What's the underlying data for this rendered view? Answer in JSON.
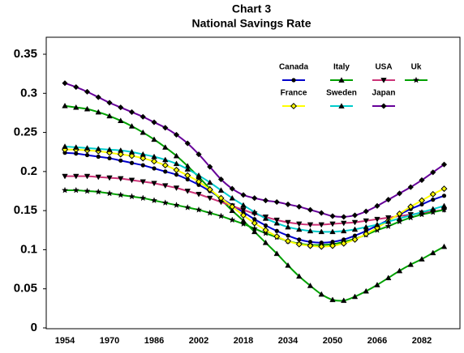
{
  "chart_data": {
    "type": "line",
    "title": "Chart 3",
    "subtitle": "National Savings Rate",
    "categories": [
      "1954",
      null,
      null,
      null,
      "1970",
      null,
      null,
      null,
      "1986",
      null,
      null,
      null,
      "2002",
      null,
      null,
      null,
      "2018",
      null,
      null,
      null,
      "2034",
      null,
      null,
      null,
      "2050",
      null,
      null,
      null,
      "2066",
      null,
      null,
      null,
      "2082",
      null,
      null
    ],
    "ylim": [
      0,
      0.35
    ],
    "yticks": [
      0,
      0.05,
      0.1,
      0.15,
      0.2,
      0.25,
      0.3,
      0.35
    ],
    "grid": false,
    "legend": "top-right",
    "series": [
      {
        "name": "Canada",
        "color": "#0000cc",
        "marker": "circle",
        "values": [
          0.224,
          0.223,
          0.221,
          0.219,
          0.217,
          0.214,
          0.211,
          0.208,
          0.204,
          0.2,
          0.196,
          0.19,
          0.183,
          0.175,
          0.166,
          0.157,
          0.148,
          0.139,
          0.131,
          0.124,
          0.118,
          0.113,
          0.11,
          0.109,
          0.11,
          0.113,
          0.118,
          0.124,
          0.131,
          0.138,
          0.145,
          0.152,
          0.158,
          0.164,
          0.169
        ]
      },
      {
        "name": "Italy",
        "color": "#00a000",
        "marker": "triangle",
        "values": [
          0.284,
          0.282,
          0.28,
          0.276,
          0.271,
          0.265,
          0.258,
          0.25,
          0.241,
          0.231,
          0.22,
          0.207,
          0.193,
          0.178,
          0.164,
          0.15,
          0.137,
          0.123,
          0.109,
          0.095,
          0.08,
          0.066,
          0.054,
          0.043,
          0.036,
          0.035,
          0.04,
          0.047,
          0.055,
          0.064,
          0.073,
          0.081,
          0.088,
          0.096,
          0.104
        ]
      },
      {
        "name": "USA",
        "color": "#cc3377",
        "marker": "triangle-down",
        "values": [
          0.194,
          0.194,
          0.194,
          0.193,
          0.192,
          0.191,
          0.189,
          0.187,
          0.185,
          0.182,
          0.179,
          0.175,
          0.171,
          0.166,
          0.161,
          0.156,
          0.151,
          0.146,
          0.142,
          0.138,
          0.135,
          0.133,
          0.132,
          0.132,
          0.133,
          0.134,
          0.135,
          0.137,
          0.139,
          0.141,
          0.143,
          0.145,
          0.147,
          0.149,
          0.151
        ]
      },
      {
        "name": "Uk",
        "color": "#00a000",
        "marker": "star",
        "values": [
          0.176,
          0.176,
          0.175,
          0.174,
          0.172,
          0.17,
          0.168,
          0.166,
          0.163,
          0.16,
          0.157,
          0.154,
          0.151,
          0.147,
          0.143,
          0.138,
          0.133,
          0.127,
          0.121,
          0.116,
          0.111,
          0.108,
          0.106,
          0.106,
          0.107,
          0.11,
          0.114,
          0.119,
          0.125,
          0.13,
          0.136,
          0.141,
          0.145,
          0.148,
          0.151
        ]
      },
      {
        "name": "France",
        "color": "#ffff00",
        "marker": "diamond-open",
        "values": [
          0.228,
          0.228,
          0.227,
          0.226,
          0.224,
          0.222,
          0.22,
          0.217,
          0.213,
          0.208,
          0.202,
          0.195,
          0.187,
          0.177,
          0.166,
          0.155,
          0.144,
          0.134,
          0.125,
          0.117,
          0.111,
          0.107,
          0.105,
          0.104,
          0.105,
          0.108,
          0.113,
          0.12,
          0.128,
          0.137,
          0.146,
          0.155,
          0.163,
          0.171,
          0.178
        ]
      },
      {
        "name": "Sweden",
        "color": "#00cccc",
        "marker": "triangle",
        "values": [
          0.232,
          0.231,
          0.23,
          0.229,
          0.228,
          0.227,
          0.225,
          0.222,
          0.219,
          0.215,
          0.21,
          0.203,
          0.195,
          0.186,
          0.176,
          0.166,
          0.157,
          0.148,
          0.14,
          0.134,
          0.129,
          0.126,
          0.124,
          0.123,
          0.123,
          0.124,
          0.126,
          0.129,
          0.132,
          0.136,
          0.14,
          0.144,
          0.148,
          0.152,
          0.156
        ]
      },
      {
        "name": "Japan",
        "color": "#660099",
        "marker": "diamond",
        "values": [
          0.313,
          0.308,
          0.302,
          0.295,
          0.288,
          0.282,
          0.276,
          0.27,
          0.263,
          0.256,
          0.247,
          0.236,
          0.222,
          0.206,
          0.19,
          0.178,
          0.17,
          0.166,
          0.163,
          0.161,
          0.158,
          0.155,
          0.151,
          0.147,
          0.143,
          0.142,
          0.144,
          0.149,
          0.156,
          0.164,
          0.172,
          0.18,
          0.189,
          0.199,
          0.209
        ]
      }
    ]
  }
}
